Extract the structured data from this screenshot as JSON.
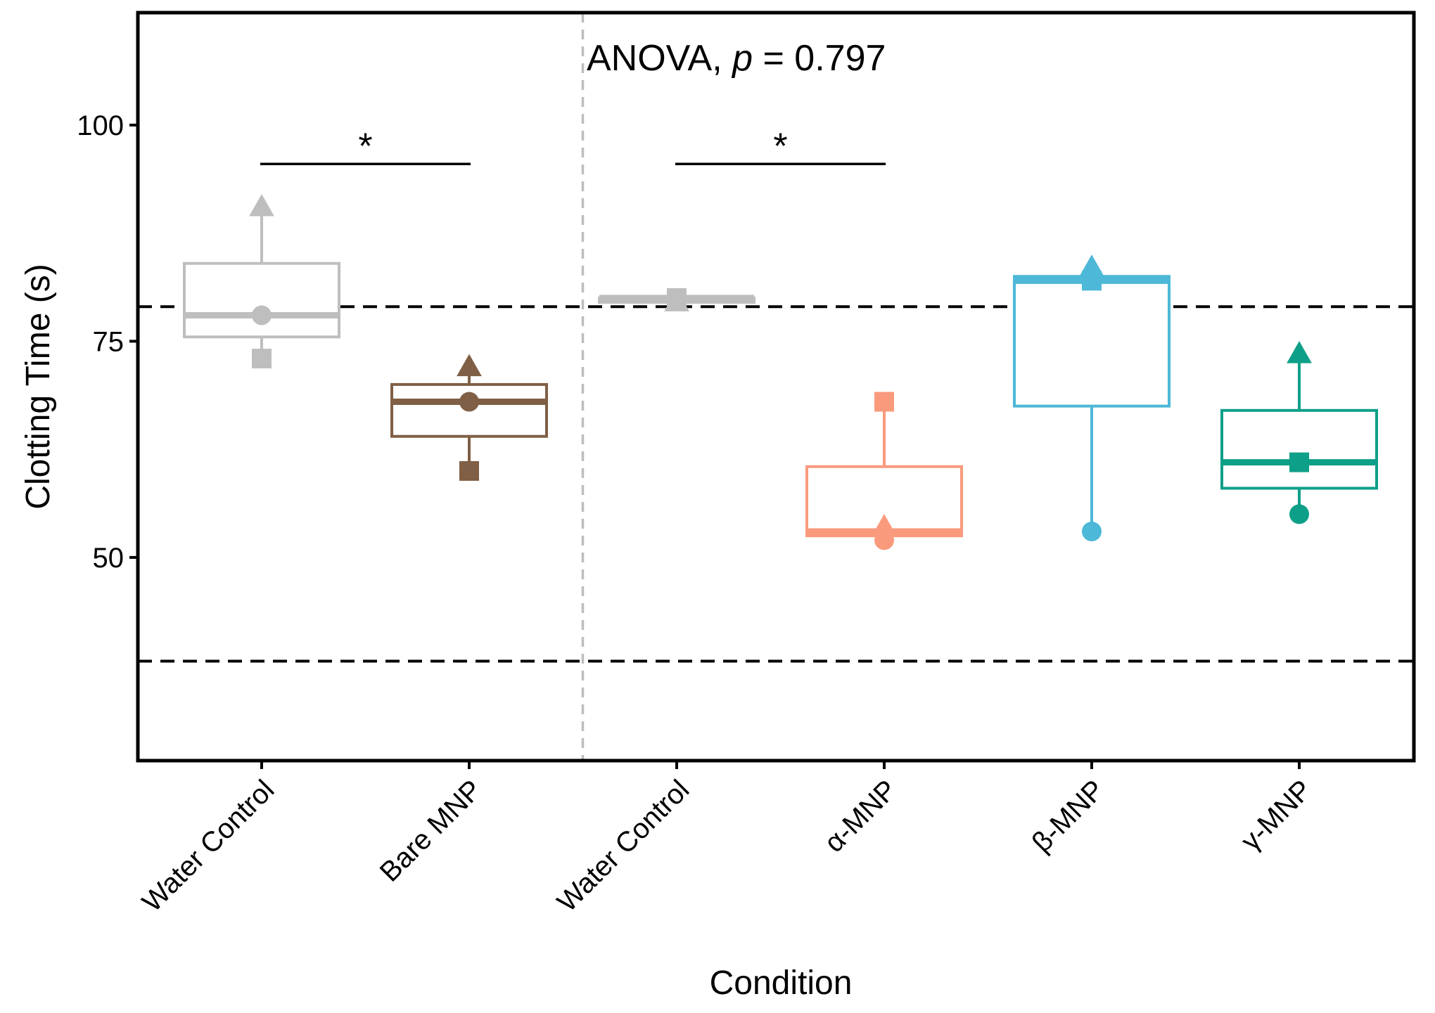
{
  "chart_data": {
    "type": "box",
    "title": "",
    "xlabel": "Condition",
    "ylabel": "Clotting Time (s)",
    "ylim": [
      26.5,
      113
    ],
    "yticks": [
      50,
      75,
      100
    ],
    "categories": [
      "Water Control",
      "Bare MNP",
      "Water Control",
      "α-MNP",
      "β-MNP",
      "γ-MNP"
    ],
    "colors": [
      "#bebebe",
      "#7f5f45",
      "#bebebe",
      "#fa9a7d",
      "#4db8d7",
      "#0e9f88"
    ],
    "boxes": [
      {
        "category": "Water Control",
        "whisker_low": 73,
        "q1": 75.5,
        "median": 78,
        "q3": 84,
        "whisker_high": 90.5
      },
      {
        "category": "Bare MNP",
        "whisker_low": 60,
        "q1": 64,
        "median": 68,
        "q3": 70,
        "whisker_high": 72
      },
      {
        "category": "Water Control",
        "whisker_low": 79,
        "q1": 79.5,
        "median": 80,
        "q3": 80,
        "whisker_high": 80
      },
      {
        "category": "α-MNP",
        "whisker_low": 52,
        "q1": 52.5,
        "median": 53,
        "q3": 60.5,
        "whisker_high": 68
      },
      {
        "category": "β-MNP",
        "whisker_low": 53,
        "q1": 67.5,
        "median": 82,
        "q3": 82.5,
        "whisker_high": 83
      },
      {
        "category": "γ-MNP",
        "whisker_low": 55,
        "q1": 58,
        "median": 61,
        "q3": 67,
        "whisker_high": 73
      }
    ],
    "points": [
      {
        "category": "Water Control",
        "shape": "circle",
        "value": 78
      },
      {
        "category": "Water Control",
        "shape": "square",
        "value": 73
      },
      {
        "category": "Water Control",
        "shape": "triangle",
        "value": 90.5
      },
      {
        "category": "Bare MNP",
        "shape": "circle",
        "value": 68
      },
      {
        "category": "Bare MNP",
        "shape": "square",
        "value": 60
      },
      {
        "category": "Bare MNP",
        "shape": "triangle",
        "value": 72
      },
      {
        "category": "Water Control",
        "shape": "circle",
        "value": 80
      },
      {
        "category": "Water Control",
        "shape": "square",
        "value": 80
      },
      {
        "category": "Water Control",
        "shape": "triangle",
        "value": 79.5
      },
      {
        "category": "α-MNP",
        "shape": "circle",
        "value": 52
      },
      {
        "category": "α-MNP",
        "shape": "square",
        "value": 68
      },
      {
        "category": "α-MNP",
        "shape": "triangle",
        "value": 53.5
      },
      {
        "category": "β-MNP",
        "shape": "circle",
        "value": 53
      },
      {
        "category": "β-MNP",
        "shape": "square",
        "value": 82
      },
      {
        "category": "β-MNP",
        "shape": "triangle",
        "value": 83.5
      },
      {
        "category": "γ-MNP",
        "shape": "circle",
        "value": 55
      },
      {
        "category": "γ-MNP",
        "shape": "square",
        "value": 61
      },
      {
        "category": "γ-MNP",
        "shape": "triangle",
        "value": 73.5
      }
    ],
    "reference_lines": [
      79,
      38
    ],
    "group_divider_after_index": 1,
    "annotation": {
      "prefix": "ANOVA, ",
      "p_symbol": "p",
      "suffix": " = 0.797"
    },
    "significance": [
      {
        "from": 0,
        "to": 1,
        "value": 95.5,
        "label": "*"
      },
      {
        "from": 2,
        "to": 3,
        "value": 95.5,
        "label": "*"
      }
    ]
  }
}
